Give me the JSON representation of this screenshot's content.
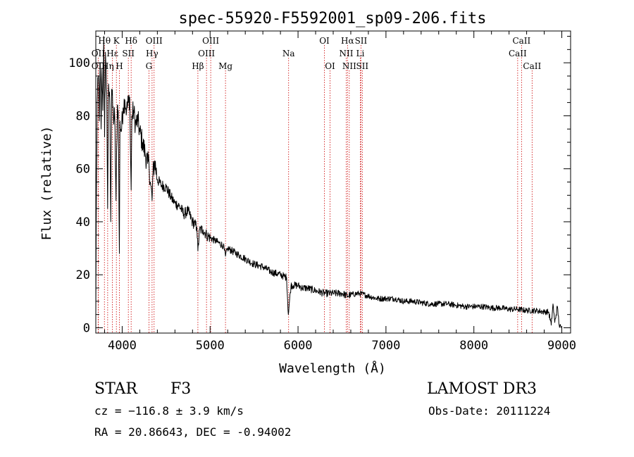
{
  "chart_data": {
    "type": "line",
    "title": "spec-55920-F5592001_sp09-206.fits",
    "xlabel": "Wavelength (Å)",
    "ylabel": "Flux (relative)",
    "xlim": [
      3700,
      9100
    ],
    "ylim": [
      -2,
      112
    ],
    "x_ticks": [
      4000,
      5000,
      6000,
      7000,
      8000,
      9000
    ],
    "y_ticks": [
      0,
      20,
      40,
      60,
      80,
      100
    ],
    "grid": false,
    "spectrum_anchor_points": [
      [
        3700,
        3
      ],
      [
        3705,
        40
      ],
      [
        3715,
        85
      ],
      [
        3730,
        95
      ],
      [
        3740,
        78
      ],
      [
        3750,
        100
      ],
      [
        3760,
        75
      ],
      [
        3770,
        98
      ],
      [
        3780,
        82
      ],
      [
        3790,
        110
      ],
      [
        3800,
        72
      ],
      [
        3810,
        104
      ],
      [
        3825,
        88
      ],
      [
        3835,
        45
      ],
      [
        3845,
        92
      ],
      [
        3860,
        84
      ],
      [
        3870,
        40
      ],
      [
        3880,
        90
      ],
      [
        3900,
        79
      ],
      [
        3915,
        80
      ],
      [
        3930,
        48
      ],
      [
        3945,
        84
      ],
      [
        3955,
        82
      ],
      [
        3968,
        28
      ],
      [
        3975,
        78
      ],
      [
        3990,
        74
      ],
      [
        4010,
        83
      ],
      [
        4030,
        86
      ],
      [
        4050,
        82
      ],
      [
        4070,
        85
      ],
      [
        4085,
        87
      ],
      [
        4102,
        52
      ],
      [
        4110,
        80
      ],
      [
        4130,
        82
      ],
      [
        4150,
        77
      ],
      [
        4180,
        78
      ],
      [
        4200,
        74
      ],
      [
        4230,
        70
      ],
      [
        4260,
        66
      ],
      [
        4290,
        62
      ],
      [
        4305,
        62
      ],
      [
        4320,
        55
      ],
      [
        4340,
        48
      ],
      [
        4350,
        58
      ],
      [
        4370,
        63
      ],
      [
        4400,
        56
      ],
      [
        4440,
        54
      ],
      [
        4500,
        53
      ],
      [
        4560,
        49
      ],
      [
        4600,
        47
      ],
      [
        4650,
        46
      ],
      [
        4700,
        43
      ],
      [
        4750,
        44
      ],
      [
        4800,
        40
      ],
      [
        4850,
        38
      ],
      [
        4861,
        29
      ],
      [
        4880,
        37
      ],
      [
        4920,
        37
      ],
      [
        4960,
        35
      ],
      [
        5000,
        34
      ],
      [
        5050,
        33
      ],
      [
        5100,
        32
      ],
      [
        5150,
        31
      ],
      [
        5175,
        27
      ],
      [
        5200,
        30
      ],
      [
        5300,
        28
      ],
      [
        5400,
        26
      ],
      [
        5500,
        24
      ],
      [
        5600,
        23
      ],
      [
        5700,
        21
      ],
      [
        5800,
        20
      ],
      [
        5870,
        19
      ],
      [
        5890,
        5
      ],
      [
        5900,
        9
      ],
      [
        5920,
        16
      ],
      [
        5950,
        16
      ],
      [
        6000,
        16
      ],
      [
        6050,
        15
      ],
      [
        6100,
        15
      ],
      [
        6200,
        14
      ],
      [
        6300,
        13
      ],
      [
        6400,
        13
      ],
      [
        6500,
        13
      ],
      [
        6563,
        12
      ],
      [
        6600,
        12.5
      ],
      [
        6700,
        13
      ],
      [
        6800,
        12
      ],
      [
        6900,
        11
      ],
      [
        7000,
        11
      ],
      [
        7100,
        11
      ],
      [
        7200,
        10
      ],
      [
        7300,
        10
      ],
      [
        7400,
        9.5
      ],
      [
        7500,
        9
      ],
      [
        7600,
        9
      ],
      [
        7700,
        9
      ],
      [
        7800,
        8.5
      ],
      [
        7900,
        8
      ],
      [
        8000,
        8
      ],
      [
        8100,
        8
      ],
      [
        8200,
        7.5
      ],
      [
        8300,
        7.5
      ],
      [
        8400,
        7
      ],
      [
        8500,
        7
      ],
      [
        8600,
        6.5
      ],
      [
        8700,
        6.5
      ],
      [
        8800,
        6
      ],
      [
        8850,
        6
      ],
      [
        8880,
        1
      ],
      [
        8900,
        9
      ],
      [
        8920,
        2
      ],
      [
        8950,
        8
      ],
      [
        8970,
        1
      ],
      [
        8990,
        0
      ]
    ],
    "line_annotations": [
      {
        "label": "Hθ",
        "x": 3798,
        "row": 1
      },
      {
        "label": "K",
        "x": 3934,
        "row": 1
      },
      {
        "label": "Hδ",
        "x": 4102,
        "row": 1
      },
      {
        "label": "OIII",
        "x": 4363,
        "row": 1
      },
      {
        "label": "OIII",
        "x": 5007,
        "row": 1
      },
      {
        "label": "OI",
        "x": 6300,
        "row": 1
      },
      {
        "label": "Hα",
        "x": 6563,
        "row": 1
      },
      {
        "label": "SII",
        "x": 6716,
        "row": 1
      },
      {
        "label": "CaII",
        "x": 8542,
        "row": 1
      },
      {
        "label": "OII",
        "x": 3727,
        "row": 2
      },
      {
        "label": "Hε",
        "x": 3889,
        "row": 2
      },
      {
        "label": "SII",
        "x": 4070,
        "row": 2
      },
      {
        "label": "Hγ",
        "x": 4340,
        "row": 2
      },
      {
        "label": "OIII",
        "x": 4959,
        "row": 2
      },
      {
        "label": "Na",
        "x": 5893,
        "row": 2
      },
      {
        "label": "NII",
        "x": 6548,
        "row": 2
      },
      {
        "label": "Li",
        "x": 6708,
        "row": 2
      },
      {
        "label": "CaII",
        "x": 8498,
        "row": 2
      },
      {
        "label": "OII",
        "x": 3727,
        "row": 3
      },
      {
        "label": "Hη",
        "x": 3835,
        "row": 3
      },
      {
        "label": "H",
        "x": 3968,
        "row": 3
      },
      {
        "label": "G",
        "x": 4304,
        "row": 3
      },
      {
        "label": "Hβ",
        "x": 4861,
        "row": 3
      },
      {
        "label": "Mg",
        "x": 5175,
        "row": 3
      },
      {
        "label": "OI",
        "x": 6364,
        "row": 3
      },
      {
        "label": "NII",
        "x": 6583,
        "row": 3
      },
      {
        "label": "SII",
        "x": 6731,
        "row": 3
      },
      {
        "label": "CaII",
        "x": 8662,
        "row": 3
      }
    ],
    "colors": {
      "spectrum": "#000000",
      "annotation_line": "#cc0000",
      "axes": "#000000"
    }
  },
  "info": {
    "object_class": "STAR",
    "subclass": "F3",
    "survey": "LAMOST DR3",
    "cz": "cz = −116.8 ± 3.9 km/s",
    "obs_date": "Obs-Date: 20111224",
    "coords": "RA =  20.86643, DEC =  -0.94002"
  }
}
